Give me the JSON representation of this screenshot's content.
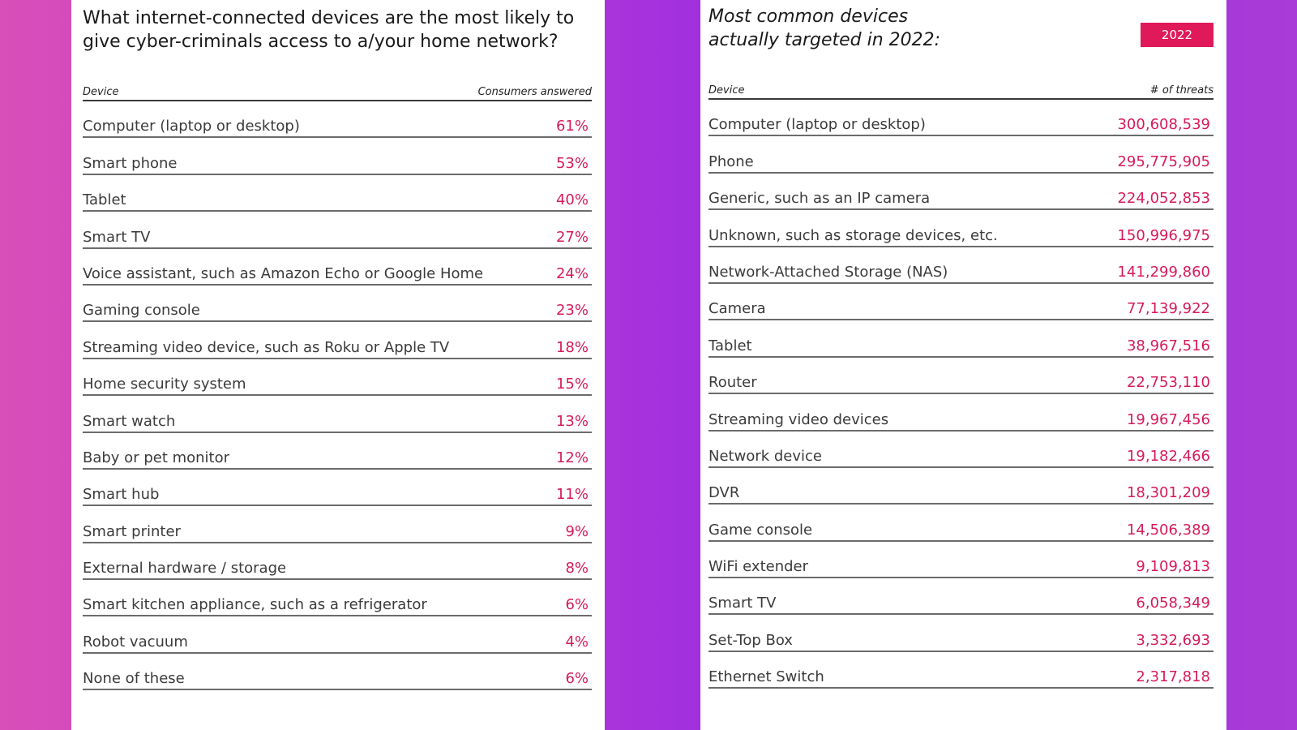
{
  "left": {
    "title": "What internet-connected devices are the most likely to give cyber-criminals access to a/your home network?",
    "col_device": "Device",
    "col_value": "Consumers answered",
    "rows": [
      {
        "device": "Computer (laptop or desktop)",
        "value": "61%"
      },
      {
        "device": "Smart phone",
        "value": "53%"
      },
      {
        "device": "Tablet",
        "value": "40%"
      },
      {
        "device": "Smart TV",
        "value": "27%"
      },
      {
        "device": "Voice assistant, such as Amazon Echo or Google Home",
        "value": "24%"
      },
      {
        "device": "Gaming console",
        "value": "23%"
      },
      {
        "device": "Streaming video device, such as Roku or Apple TV",
        "value": "18%"
      },
      {
        "device": "Home security system",
        "value": "15%"
      },
      {
        "device": "Smart watch",
        "value": "13%"
      },
      {
        "device": "Baby or pet monitor",
        "value": "12%"
      },
      {
        "device": "Smart hub",
        "value": "11%"
      },
      {
        "device": "Smart printer",
        "value": "9%"
      },
      {
        "device": "External hardware / storage",
        "value": "8%"
      },
      {
        "device": "Smart kitchen appliance, such as a refrigerator",
        "value": "6%"
      },
      {
        "device": "Robot vacuum",
        "value": "4%"
      },
      {
        "device": "None of these",
        "value": "6%"
      }
    ]
  },
  "right": {
    "title_line1": "Most common devices",
    "title_line2": "actually targeted in 2022:",
    "badge": "2022",
    "col_device": "Device",
    "col_value": "# of threats",
    "rows": [
      {
        "device": "Computer (laptop or desktop)",
        "value": "300,608,539"
      },
      {
        "device": "Phone",
        "value": "295,775,905"
      },
      {
        "device": "Generic, such as an IP camera",
        "value": "224,052,853"
      },
      {
        "device": "Unknown, such as storage devices, etc.",
        "value": "150,996,975"
      },
      {
        "device": "Network-Attached Storage (NAS)",
        "value": "141,299,860"
      },
      {
        "device": "Camera",
        "value": "77,139,922"
      },
      {
        "device": "Tablet",
        "value": "38,967,516"
      },
      {
        "device": "Router",
        "value": "22,753,110"
      },
      {
        "device": "Streaming video devices",
        "value": "19,967,456"
      },
      {
        "device": "Network device",
        "value": "19,182,466"
      },
      {
        "device": "DVR",
        "value": "18,301,209"
      },
      {
        "device": "Game console",
        "value": "14,506,389"
      },
      {
        "device": "WiFi extender",
        "value": "9,109,813"
      },
      {
        "device": "Smart TV",
        "value": "6,058,349"
      },
      {
        "device": "Set-Top Box",
        "value": "3,332,693"
      },
      {
        "device": "Ethernet Switch",
        "value": "2,317,818"
      }
    ]
  }
}
